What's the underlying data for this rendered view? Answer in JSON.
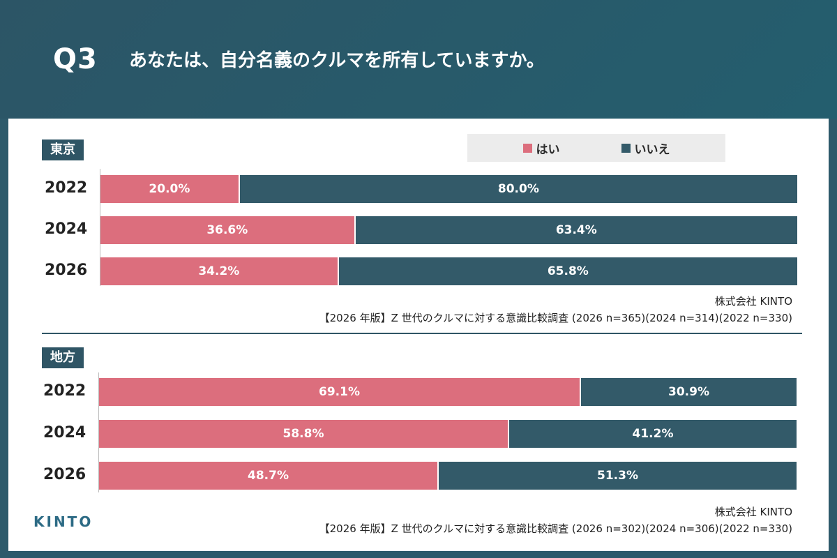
{
  "header": {
    "question_number": "Q3",
    "question_text": "あなたは、自分名義のクルマを所有していますか。"
  },
  "legend": {
    "items": [
      {
        "label": "はい",
        "color": "#dc6e7d"
      },
      {
        "label": "いいえ",
        "color": "#335a69"
      }
    ]
  },
  "logo": {
    "text": "KINTO"
  },
  "chart_data": [
    {
      "type": "bar",
      "orientation": "horizontal",
      "stacked": true,
      "region": "東京",
      "categories": [
        "2022",
        "2024",
        "2026"
      ],
      "series": [
        {
          "name": "はい",
          "values": [
            20.0,
            36.6,
            34.2
          ],
          "labels": [
            "20.0%",
            "36.6%",
            "34.2%"
          ]
        },
        {
          "name": "いいえ",
          "values": [
            80.0,
            63.4,
            65.8
          ],
          "labels": [
            "80.0%",
            "63.4%",
            "65.8%"
          ]
        }
      ],
      "xlim": [
        0,
        100
      ],
      "legend": "top-right",
      "grid": false,
      "source_line1": "株式会社 KINTO",
      "source_line2": "【2026 年版】Z 世代のクルマに対する意識比較調査 (2026 n=365)(2024 n=314)(2022 n=330)"
    },
    {
      "type": "bar",
      "orientation": "horizontal",
      "stacked": true,
      "region": "地方",
      "categories": [
        "2022",
        "2024",
        "2026"
      ],
      "series": [
        {
          "name": "はい",
          "values": [
            69.1,
            58.8,
            48.7
          ],
          "labels": [
            "69.1%",
            "58.8%",
            "48.7%"
          ]
        },
        {
          "name": "いいえ",
          "values": [
            30.9,
            41.2,
            51.3
          ],
          "labels": [
            "30.9%",
            "41.2%",
            "51.3%"
          ]
        }
      ],
      "xlim": [
        0,
        100
      ],
      "grid": false,
      "source_line1": "株式会社 KINTO",
      "source_line2": "【2026 年版】Z 世代のクルマに対する意識比較調査 (2026 n=302)(2024 n=306)(2022 n=330)"
    }
  ]
}
